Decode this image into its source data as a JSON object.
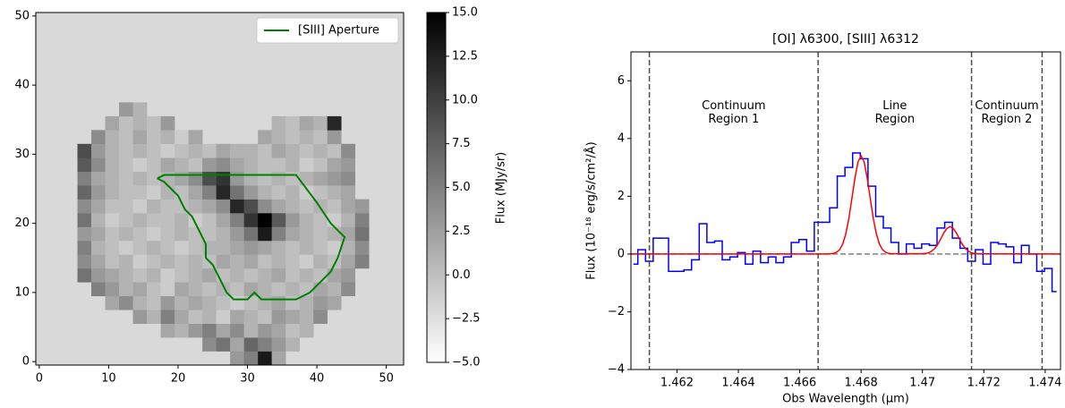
{
  "chart_data": [
    {
      "type": "image",
      "xlim": [
        -0.5,
        52.5
      ],
      "ylim": [
        -0.5,
        50.5
      ],
      "xticks": [
        0,
        10,
        20,
        30,
        40,
        50
      ],
      "yticks": [
        0,
        10,
        20,
        30,
        40,
        50
      ],
      "nan_color": "#d9d9d9",
      "colormap": [
        "#ffffff",
        "#000000"
      ],
      "x": [
        6.5,
        8.5,
        10.5,
        12.5,
        14.5,
        16.5,
        18.5,
        20.5,
        22.5,
        24.5,
        26.5,
        28.5,
        30.5,
        32.5,
        34.5,
        36.5,
        38.5,
        40.5,
        42.5,
        44.5,
        46.5
      ],
      "y": [
        0.5,
        2.5,
        4.5,
        6.5,
        8.5,
        10.5,
        12.5,
        14.5,
        16.5,
        18.5,
        20.5,
        22.5,
        24.5,
        26.5,
        28.5,
        30.5,
        32.5,
        34.5,
        36.5
      ],
      "values": [
        [
          null,
          null,
          null,
          null,
          null,
          null,
          null,
          null,
          null,
          null,
          null,
          3,
          5,
          13,
          2,
          null,
          null,
          null,
          null,
          null,
          null
        ],
        [
          null,
          null,
          null,
          null,
          null,
          null,
          null,
          null,
          null,
          4,
          6,
          2,
          7,
          5,
          3,
          1,
          null,
          null,
          null,
          null,
          null
        ],
        [
          null,
          null,
          null,
          null,
          null,
          null,
          2,
          1,
          3,
          5,
          2,
          4,
          1,
          3,
          2,
          0,
          1,
          null,
          null,
          null,
          null
        ],
        [
          null,
          null,
          null,
          null,
          3,
          1,
          5,
          2,
          0,
          1,
          -1,
          2,
          1,
          0,
          3,
          2,
          1,
          4,
          null,
          null,
          null
        ],
        [
          null,
          null,
          2,
          4,
          1,
          0,
          3,
          1,
          2,
          1,
          0,
          -1,
          0,
          1,
          2,
          0,
          1,
          3,
          2,
          null,
          null
        ],
        [
          null,
          5,
          3,
          1,
          2,
          0,
          -1,
          2,
          1,
          0,
          1,
          0,
          2,
          1,
          0,
          1,
          0,
          2,
          1,
          4,
          null
        ],
        [
          6,
          3,
          2,
          1,
          0,
          1,
          -1,
          0,
          1,
          2,
          0,
          1,
          0,
          1,
          2,
          0,
          1,
          0,
          2,
          3,
          null
        ],
        [
          4,
          2,
          0,
          1,
          -1,
          0,
          1,
          0,
          1,
          0,
          2,
          1,
          2,
          0,
          1,
          0,
          -1,
          1,
          0,
          2,
          5
        ],
        [
          5,
          1,
          0,
          -1,
          0,
          1,
          0,
          -1,
          0,
          1,
          1,
          2,
          3,
          2,
          1,
          0,
          1,
          0,
          -1,
          1,
          4
        ],
        [
          3,
          2,
          0,
          1,
          0,
          -1,
          0,
          1,
          0,
          0,
          1,
          3,
          6,
          13,
          5,
          2,
          1,
          0,
          1,
          2,
          6
        ],
        [
          6,
          1,
          -1,
          0,
          1,
          0,
          0,
          1,
          -1,
          0,
          2,
          5,
          11,
          15,
          8,
          3,
          1,
          0,
          -1,
          1,
          5
        ],
        [
          4,
          2,
          0,
          0,
          -1,
          1,
          0,
          0,
          1,
          2,
          4,
          12,
          9,
          4,
          2,
          1,
          0,
          1,
          0,
          2,
          3
        ],
        [
          7,
          3,
          1,
          0,
          0,
          -1,
          1,
          0,
          2,
          5,
          12,
          6,
          3,
          1,
          0,
          1,
          -1,
          0,
          1,
          2,
          null
        ],
        [
          5,
          2,
          1,
          0,
          1,
          0,
          1,
          2,
          4,
          9,
          11,
          3,
          1,
          0,
          1,
          0,
          1,
          2,
          3,
          4,
          null
        ],
        [
          8,
          4,
          1,
          0,
          -1,
          0,
          2,
          1,
          0,
          3,
          4,
          2,
          1,
          0,
          0,
          1,
          -1,
          0,
          2,
          3,
          null
        ],
        [
          9,
          3,
          1,
          0,
          1,
          0,
          -1,
          0,
          1,
          0,
          2,
          1,
          1,
          0,
          2,
          1,
          0,
          1,
          0,
          4,
          null
        ],
        [
          null,
          4,
          1,
          0,
          2,
          0,
          1,
          -1,
          2,
          null,
          null,
          null,
          null,
          2,
          1,
          0,
          1,
          0,
          3,
          null,
          null
        ],
        [
          null,
          null,
          2,
          0,
          1,
          0,
          3,
          null,
          null,
          null,
          null,
          null,
          null,
          null,
          1,
          0,
          2,
          1,
          12,
          null,
          null
        ],
        [
          null,
          null,
          null,
          3,
          1,
          null,
          null,
          null,
          null,
          null,
          null,
          null,
          null,
          null,
          null,
          null,
          null,
          null,
          null,
          null,
          null
        ]
      ],
      "colorbar": {
        "label": "Flux (MJy/sr)",
        "lim": [
          -5,
          15
        ],
        "ticks": [
          {
            "value": -5,
            "label": "−5.0"
          },
          {
            "value": -2.5,
            "label": "−2.5"
          },
          {
            "value": 0,
            "label": "0.0"
          },
          2.5,
          {
            "value": 5,
            "label": "5.0"
          },
          7.5,
          {
            "value": 10,
            "label": "10.0"
          },
          12.5,
          {
            "value": 15,
            "label": "15.0"
          }
        ]
      },
      "legend": "upper right",
      "series": [
        {
          "name": "[SIII] Aperture",
          "color": "#008000",
          "x": [
            17,
            18,
            37,
            40,
            42,
            44,
            43,
            42,
            40,
            39,
            37,
            32,
            31,
            30,
            28,
            27,
            26,
            25,
            24,
            24,
            23,
            22,
            21,
            20,
            19,
            18,
            17
          ],
          "values": [
            26.5,
            27,
            27,
            23,
            20,
            18,
            15,
            13,
            11,
            10,
            9,
            9,
            10,
            9,
            9,
            10,
            12,
            14,
            15,
            17,
            19,
            21,
            22,
            24,
            25,
            26,
            26.5
          ]
        }
      ]
    },
    {
      "type": "step",
      "title": "[OI] λ6300, [SIII] λ6312",
      "xlabel": "Obs Wavelength (μm)",
      "ylabel": "Flux (10⁻¹⁸ erg/s/cm²/Å)",
      "xlim": [
        1.4605,
        1.4745
      ],
      "ylim": [
        -4,
        7
      ],
      "xticks": [
        1.462,
        1.464,
        1.466,
        1.468,
        1.47,
        1.472,
        1.474
      ],
      "yticks": [
        {
          "value": -4,
          "label": "−4"
        },
        {
          "value": -2,
          "label": "−2"
        },
        0,
        2,
        4,
        6
      ],
      "hline": 0,
      "hline_color": "#808080",
      "vlines": [
        1.4611,
        1.4666,
        1.4716,
        1.4739
      ],
      "vline_color": "#4d4d4d",
      "annotations": [
        {
          "lines": [
            "Continuum",
            "Region 1"
          ]
        },
        {
          "lines": [
            "Line",
            "Region"
          ]
        },
        {
          "lines": [
            "Continuum",
            "Region 2"
          ]
        }
      ],
      "series": [
        {
          "color": "#0000ff",
          "drawstyle": "steps-mid",
          "x": [
            1.4606,
            1.46085,
            1.4611,
            1.46135,
            1.4616,
            1.46185,
            1.4621,
            1.46235,
            1.4626,
            1.46285,
            1.4631,
            1.46335,
            1.4636,
            1.46385,
            1.4641,
            1.46435,
            1.4646,
            1.46485,
            1.4651,
            1.46535,
            1.4656,
            1.46585,
            1.4661,
            1.46635,
            1.4666,
            1.46685,
            1.4671,
            1.46735,
            1.4676,
            1.46785,
            1.4681,
            1.46835,
            1.4686,
            1.46885,
            1.4691,
            1.46935,
            1.4696,
            1.46985,
            1.4701,
            1.47035,
            1.4706,
            1.47085,
            1.4711,
            1.47135,
            1.4716,
            1.47185,
            1.4721,
            1.47235,
            1.4726,
            1.47285,
            1.4731,
            1.47335,
            1.4736,
            1.47385,
            1.4741,
            1.47435
          ],
          "values": [
            -0.35,
            0.15,
            -0.25,
            0.55,
            0.55,
            -0.6,
            -0.6,
            -0.55,
            -0.2,
            1.05,
            0.4,
            0.45,
            -0.2,
            -0.1,
            0.05,
            -0.35,
            0.1,
            -0.3,
            -0.1,
            -0.3,
            -0.1,
            0.4,
            0.5,
            0.1,
            1.1,
            1.1,
            1.6,
            2.7,
            3.0,
            3.5,
            3.3,
            2.35,
            1.3,
            0.9,
            0.4,
            0.0,
            0.35,
            0.2,
            0.35,
            0.3,
            0.9,
            1.1,
            0.55,
            0.2,
            -0.25,
            0.15,
            -0.35,
            0.4,
            0.35,
            0.25,
            -0.3,
            0.3,
            0.0,
            -0.6,
            -0.5,
            -1.3
          ]
        },
        {
          "color": "#ff0000",
          "x": [
            1.4605,
            1.4669,
            1.467,
            1.4671,
            1.4672,
            1.4673,
            1.4674,
            1.4675,
            1.4676,
            1.4677,
            1.4678,
            1.4679,
            1.468,
            1.4681,
            1.4682,
            1.4683,
            1.4684,
            1.4685,
            1.4686,
            1.4687,
            1.4688,
            1.4689,
            1.469,
            1.47,
            1.4701,
            1.4702,
            1.4703,
            1.4704,
            1.4705,
            1.4706,
            1.4707,
            1.4708,
            1.4709,
            1.471,
            1.4711,
            1.4712,
            1.4713,
            1.4714,
            1.4715,
            1.4716,
            1.4717,
            1.4718,
            1.4745
          ],
          "values": [
            0,
            0,
            0.01,
            0.02,
            0.06,
            0.15,
            0.34,
            0.69,
            1.22,
            1.92,
            2.63,
            3.19,
            3.4,
            3.19,
            2.63,
            1.92,
            1.22,
            0.69,
            0.34,
            0.15,
            0.06,
            0.02,
            0.01,
            0.01,
            0.02,
            0.04,
            0.1,
            0.19,
            0.34,
            0.53,
            0.74,
            0.89,
            0.95,
            0.89,
            0.74,
            0.53,
            0.34,
            0.19,
            0.1,
            0.04,
            0.02,
            0.01,
            0
          ]
        }
      ]
    }
  ]
}
